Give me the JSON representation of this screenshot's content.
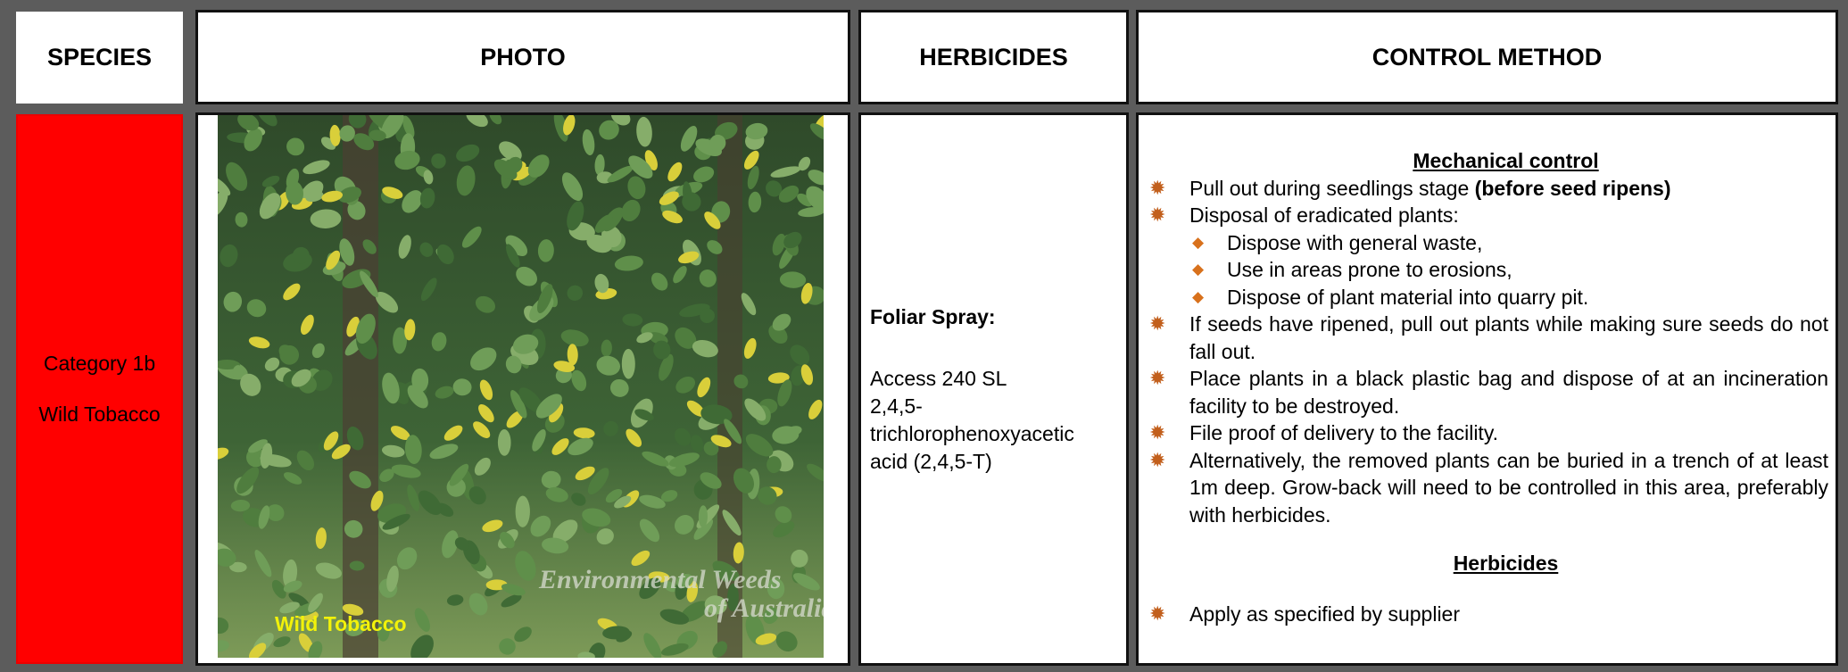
{
  "header": {
    "columns": [
      "SPECIES",
      "PHOTO",
      "HERBICIDES",
      "CONTROL METHOD"
    ]
  },
  "species": {
    "category": "Category 1b",
    "name": "Wild Tobacco"
  },
  "photo": {
    "caption": "Wild Tobacco",
    "watermark": [
      "Environmental Weeds",
      "of Australia"
    ]
  },
  "herbicides": {
    "method": "Foliar Spray:",
    "products": [
      "Access 240 SL",
      "2,4,5-trichlorophenoxyacetic acid (2,4,5-T)"
    ]
  },
  "control": {
    "sections": [
      {
        "title": "Mechanical control",
        "items": [
          {
            "text": "Pull out during seedlings stage ",
            "bold": "(before seed ripens)"
          },
          {
            "text": "Disposal of eradicated plants:",
            "subitems": [
              "Dispose with general waste,",
              "Use in areas prone to erosions,",
              "Dispose of plant material into quarry pit."
            ]
          },
          {
            "text": "If seeds have ripened, pull out plants while making sure seeds do not fall out."
          },
          {
            "text": "Place plants in a black plastic bag and dispose of at an incineration facility to be destroyed."
          },
          {
            "text": "File proof of delivery to the facility."
          },
          {
            "text": "Alternatively, the removed plants can be buried in a trench of at least 1m deep. Grow-back will need to be controlled in this area, preferably with herbicides."
          }
        ]
      },
      {
        "title": "Herbicides",
        "items": [
          {
            "text": "Apply as specified by supplier"
          }
        ]
      }
    ]
  }
}
